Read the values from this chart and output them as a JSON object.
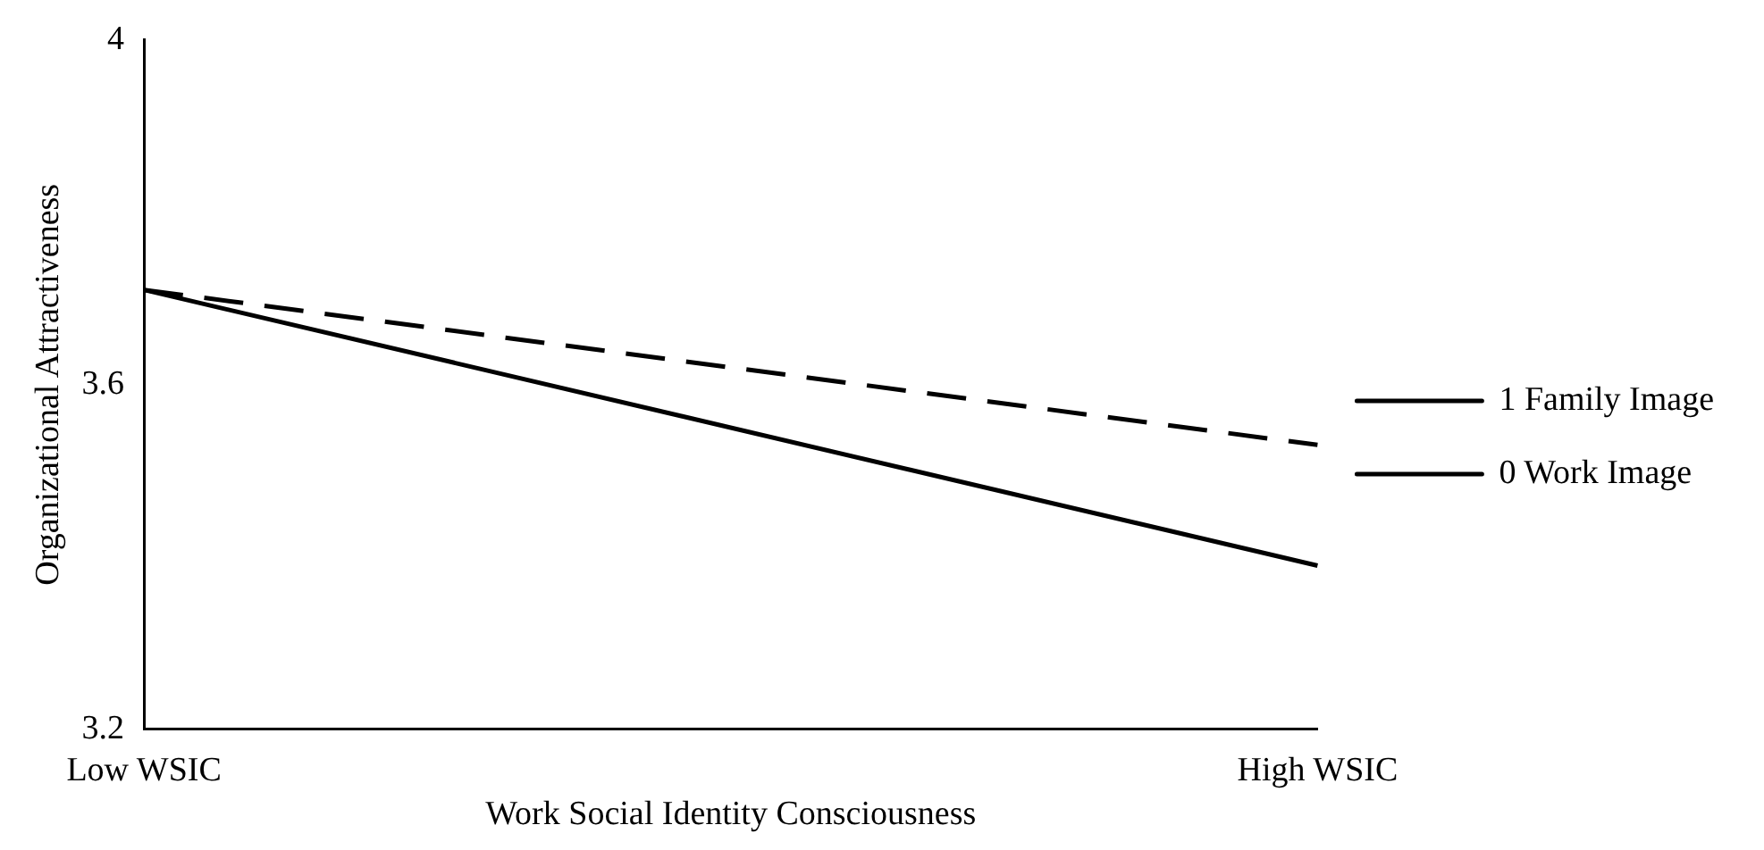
{
  "chart_data": {
    "type": "line",
    "xlabel": "Work Social Identity Consciousness",
    "ylabel": "Organizational Attractiveness",
    "categories": [
      "Low WSIC",
      "High WSIC"
    ],
    "series": [
      {
        "name": "1 Family Image",
        "color": "#000000",
        "values": [
          3.71,
          3.39
        ],
        "line_style": "solid"
      },
      {
        "name": "0 Work Image",
        "color": "#000000",
        "values": [
          3.71,
          3.53
        ],
        "line_style": "dashed"
      }
    ],
    "ylim": [
      3.2,
      4
    ],
    "yticks": [
      3.2,
      3.6,
      4
    ],
    "grid": false,
    "legend": "right",
    "marker": "none"
  }
}
